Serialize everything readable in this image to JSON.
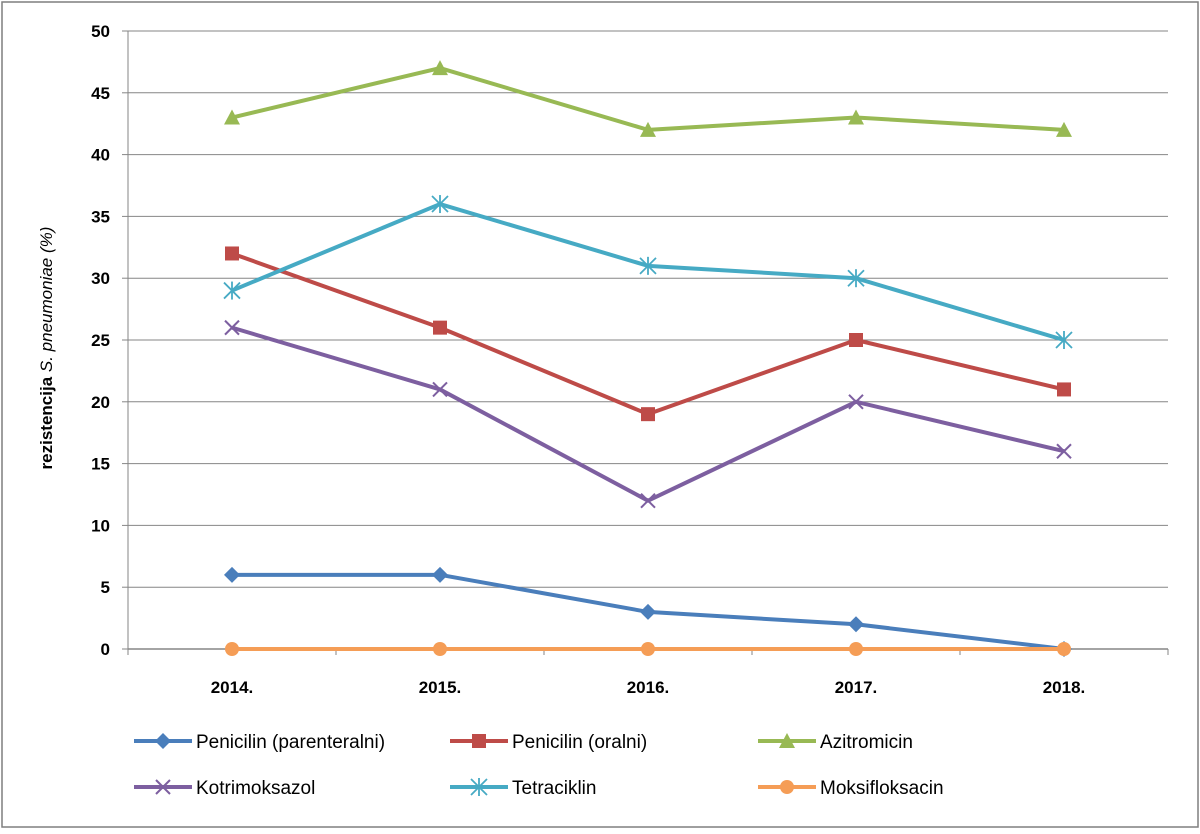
{
  "chart_data": {
    "type": "line",
    "title": "",
    "xlabel": "",
    "ylabel_parts": [
      "rezistencija ",
      "S. pneumoniae",
      " (%)"
    ],
    "categories": [
      "2014.",
      "2015.",
      "2016.",
      "2017.",
      "2018."
    ],
    "ylim": [
      0,
      50
    ],
    "yticks": [
      0,
      5,
      10,
      15,
      20,
      25,
      30,
      35,
      40,
      45,
      50
    ],
    "grid": true,
    "legend_position": "bottom",
    "series": [
      {
        "name": "Penicilin (parenteralni)",
        "marker": "diamond",
        "color": "#4a7ebb",
        "values": [
          6,
          6,
          3,
          2,
          0
        ]
      },
      {
        "name": "Penicilin (oralni)",
        "marker": "square",
        "color": "#be4b48",
        "values": [
          32,
          26,
          19,
          25,
          21
        ]
      },
      {
        "name": "Azitromicin",
        "marker": "triangle",
        "color": "#98b954",
        "values": [
          43,
          47,
          42,
          43,
          42
        ]
      },
      {
        "name": "Kotrimoksazol",
        "marker": "x",
        "color": "#7d5fa0",
        "values": [
          26,
          21,
          12,
          20,
          16
        ]
      },
      {
        "name": "Tetraciklin",
        "marker": "star",
        "color": "#46aac4",
        "values": [
          29,
          36,
          31,
          30,
          25
        ]
      },
      {
        "name": "Moksifloksacin",
        "marker": "circle",
        "color": "#f59d56",
        "values": [
          0,
          0,
          0,
          0,
          0
        ]
      }
    ]
  }
}
